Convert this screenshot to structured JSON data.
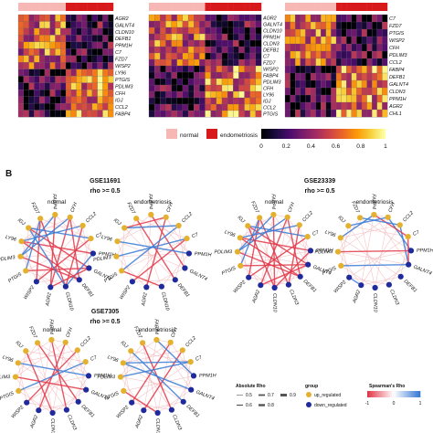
{
  "figure_label_b": "B",
  "heatmaps": [
    {
      "dataset": "GSE11691",
      "genes": [
        "AGR2",
        "GALNT4",
        "CLDN10",
        "DEFB1",
        "PPM1H",
        "C7",
        "FZD7",
        "WISP2",
        "LY96",
        "PTGIS",
        "PDLIM3",
        "CFH",
        "IGJ",
        "CCL2",
        "FABP4"
      ],
      "annotation": [
        "n",
        "n",
        "n",
        "n",
        "n",
        "n",
        "n",
        "n",
        "n",
        "e",
        "e",
        "e",
        "e",
        "e",
        "e",
        "e",
        "e",
        "e"
      ]
    },
    {
      "dataset": "GSE23339",
      "genes": [
        "AGR2",
        "GALNT4",
        "CLDN10",
        "PPM1H",
        "CLDN3",
        "DEFB1",
        "C7",
        "FZD7",
        "WISP2",
        "FABP4",
        "PDLIM3",
        "CFH",
        "LY96",
        "IGJ",
        "CCL2",
        "PTGIS"
      ],
      "annotation": [
        "n",
        "n",
        "n",
        "n",
        "n",
        "n",
        "n",
        "n",
        "n",
        "n",
        "e",
        "e",
        "e",
        "e",
        "e",
        "e",
        "e",
        "e",
        "e",
        "e"
      ]
    },
    {
      "dataset": "GSE7305",
      "genes": [
        "C7",
        "FZD7",
        "PTGIS",
        "WISP2",
        "CFH",
        "PDLIM3",
        "CCL2",
        "FABP4",
        "DEFB1",
        "GALNT4",
        "CLDN3",
        "PPM1H",
        "AGR2",
        "CHL1"
      ],
      "annotation": [
        "n",
        "n",
        "n",
        "n",
        "n",
        "n",
        "n",
        "n",
        "n",
        "n",
        "e",
        "e",
        "e",
        "e",
        "e",
        "e",
        "e",
        "e",
        "e",
        "e"
      ]
    }
  ],
  "annotation_legend": {
    "normal": "normal",
    "endometriosis": "endometriosis"
  },
  "colorbar": {
    "ticks": [
      "0",
      "0.2",
      "0.4",
      "0.6",
      "0.8",
      "1"
    ]
  },
  "networks": [
    {
      "dataset": "GSE11691",
      "threshold": "rho >= 0.5",
      "panels": [
        {
          "title": "normal",
          "genes": [
            "CFH",
            "CCL2",
            "C7",
            "PPM1H",
            "GALNT4",
            "DEFB1",
            "CLDN10",
            "AGR2",
            "WISP2",
            "PTGIS",
            "PDLIM3",
            "LY96",
            "IGJ",
            "FZD7",
            "FABP4"
          ],
          "edges": [
            [
              0,
              5,
              "r"
            ],
            [
              0,
              7,
              "r"
            ],
            [
              1,
              6,
              "r"
            ],
            [
              2,
              8,
              "r"
            ],
            [
              11,
              3,
              "r"
            ],
            [
              12,
              4,
              "r"
            ],
            [
              13,
              6,
              "r"
            ],
            [
              9,
              4,
              "r"
            ],
            [
              10,
              5,
              "r"
            ],
            [
              14,
              7,
              "r"
            ],
            [
              13,
              8,
              "r"
            ],
            [
              0,
              10,
              "b"
            ],
            [
              1,
              11,
              "b"
            ],
            [
              2,
              12,
              "b"
            ],
            [
              9,
              13,
              "b"
            ],
            [
              10,
              14,
              "b"
            ],
            [
              3,
              6,
              "b"
            ],
            [
              4,
              7,
              "r"
            ],
            [
              11,
              5,
              "r"
            ],
            [
              12,
              6,
              "b"
            ]
          ]
        },
        {
          "title": "endometriosis",
          "genes": [
            "CFH",
            "CCL2",
            "C7",
            "PPM1H",
            "GALNT4",
            "DEFB1",
            "CLDN10",
            "AGR2",
            "WISP2",
            "PTGIS",
            "PDLIM3",
            "LY96",
            "IGJ",
            "FZD7",
            "FABP4"
          ],
          "edges": [
            [
              0,
              7,
              "r"
            ],
            [
              2,
              8,
              "r"
            ],
            [
              13,
              5,
              "r"
            ],
            [
              9,
              6,
              "r"
            ],
            [
              14,
              4,
              "r"
            ],
            [
              11,
              3,
              "b"
            ],
            [
              10,
              2,
              "b"
            ],
            [
              12,
              1,
              "b"
            ],
            [
              1,
              9,
              "b"
            ],
            [
              0,
              12,
              "r"
            ]
          ]
        }
      ]
    },
    {
      "dataset": "GSE23339",
      "threshold": "rho >= 0.5",
      "panels": [
        {
          "title": "normal",
          "genes": [
            "CFH",
            "CCL2",
            "C7",
            "PPM1H",
            "GALNT4",
            "DEFB1",
            "CLDN3",
            "CLDN10",
            "AGR2",
            "WISP2",
            "PTGIS",
            "PDLIM3",
            "LY96",
            "IGJ",
            "FZD7",
            "FABP4"
          ],
          "edges": [
            [
              0,
              5,
              "r"
            ],
            [
              0,
              8,
              "r"
            ],
            [
              1,
              6,
              "r"
            ],
            [
              2,
              9,
              "r"
            ],
            [
              12,
              3,
              "r"
            ],
            [
              13,
              4,
              "r"
            ],
            [
              14,
              6,
              "r"
            ],
            [
              10,
              4,
              "r"
            ],
            [
              11,
              5,
              "r"
            ],
            [
              15,
              7,
              "r"
            ],
            [
              14,
              9,
              "r"
            ],
            [
              0,
              11,
              "b"
            ],
            [
              1,
              12,
              "b"
            ],
            [
              2,
              13,
              "b"
            ],
            [
              10,
              14,
              "b"
            ],
            [
              11,
              15,
              "b"
            ],
            [
              3,
              7,
              "r"
            ],
            [
              4,
              8,
              "r"
            ],
            [
              12,
              5,
              "r"
            ],
            [
              13,
              7,
              "r"
            ]
          ]
        },
        {
          "title": "endometriosis",
          "genes": [
            "CFH",
            "CCL2",
            "C7",
            "PPM1H",
            "GALNT4",
            "DEFB1",
            "CLDN3",
            "CLDN10",
            "AGR2",
            "WISP2",
            "PTGIS",
            "PDLIM3",
            "LY96",
            "IGJ",
            "FZD7",
            "FABP4"
          ],
          "edges": [
            [
              0,
              3,
              "b"
            ],
            [
              1,
              4,
              "b"
            ],
            [
              15,
              2,
              "r"
            ],
            [
              14,
              1,
              "b"
            ],
            [
              13,
              0,
              "b"
            ],
            [
              12,
              15,
              "b"
            ],
            [
              10,
              4,
              "b"
            ],
            [
              11,
              3,
              "r"
            ],
            [
              9,
              8,
              "b"
            ],
            [
              2,
              4,
              "r"
            ]
          ]
        }
      ]
    },
    {
      "dataset": "GSE7305",
      "threshold": "rho >= 0.5",
      "panels": [
        {
          "title": "normal",
          "genes": [
            "CFH",
            "CCL2",
            "C7",
            "PPM1H",
            "GALNT4",
            "DEFB1",
            "CLDN3",
            "CLDN10",
            "AGR2",
            "WISP2",
            "PTGIS",
            "PDLIM3",
            "LY96",
            "IGJ",
            "FZD7",
            "FABP4"
          ],
          "edges": [
            [
              0,
              8,
              "r"
            ],
            [
              1,
              9,
              "r"
            ],
            [
              15,
              6,
              "r"
            ],
            [
              14,
              5,
              "r"
            ],
            [
              13,
              7,
              "r"
            ],
            [
              12,
              3,
              "b"
            ],
            [
              2,
              10,
              "b"
            ],
            [
              11,
              4,
              "r"
            ]
          ]
        },
        {
          "title": "endometriosis",
          "genes": [
            "CFH",
            "CCL2",
            "C7",
            "PPM1H",
            "GALNT4",
            "DEFB1",
            "CLDN3",
            "CLDN10",
            "AGR2",
            "WISP2",
            "PTGIS",
            "PDLIM3",
            "LY96",
            "IGJ",
            "FZD7",
            "FABP4"
          ],
          "edges": [
            [
              0,
              9,
              "r"
            ],
            [
              1,
              8,
              "r"
            ],
            [
              14,
              6,
              "r"
            ],
            [
              13,
              5,
              "b"
            ],
            [
              12,
              4,
              "b"
            ],
            [
              15,
              3,
              "b"
            ],
            [
              11,
              2,
              "b"
            ],
            [
              10,
              7,
              "r"
            ],
            [
              2,
              12,
              "b"
            ]
          ]
        }
      ]
    }
  ],
  "legend_absolute_rho": {
    "title": "Absolute Rho",
    "items": [
      "0.5",
      "0.6",
      "0.7",
      "0.8",
      "0.9"
    ]
  },
  "legend_group": {
    "title": "group",
    "items": [
      "up_regulated",
      "down_regulated"
    ]
  },
  "legend_spearman": {
    "title": "Spearman's Rho",
    "ticks": [
      "-1",
      "0",
      "1"
    ]
  },
  "colors": {
    "normal": "#f7b7b4",
    "endometriosis": "#d7191c",
    "up_regulated": "#e3b12d",
    "down_regulated": "#1f2a9c",
    "edge_positive": "#e23a4a",
    "edge_negative": "#3a7bd5",
    "cmap": [
      "#000004",
      "#1b0c41",
      "#4a0c6b",
      "#781c6d",
      "#a52c60",
      "#cf4446",
      "#ed6925",
      "#fb9b06",
      "#f7d13d",
      "#fcffa4"
    ]
  }
}
